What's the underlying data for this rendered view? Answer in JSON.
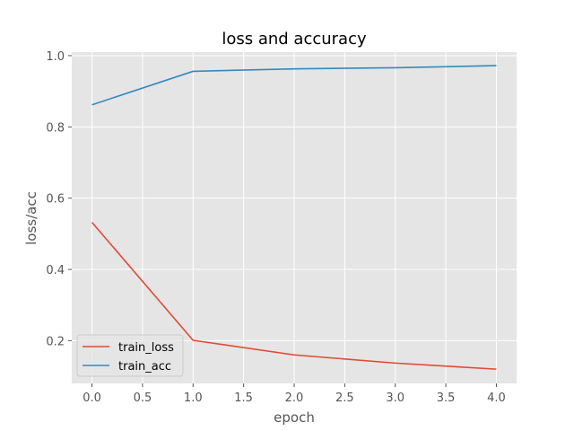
{
  "chart_data": {
    "type": "line",
    "title": "loss and accuracy",
    "xlabel": "epoch",
    "ylabel": "loss/acc",
    "x": [
      0,
      1,
      2,
      3,
      4
    ],
    "xlim": [
      -0.2,
      4.2
    ],
    "ylim": [
      0.08,
      1.01
    ],
    "xticks": [
      0.0,
      0.5,
      1.0,
      1.5,
      2.0,
      2.5,
      3.0,
      3.5,
      4.0
    ],
    "xtick_labels": [
      "0.0",
      "0.5",
      "1.0",
      "1.5",
      "2.0",
      "2.5",
      "3.0",
      "3.5",
      "4.0"
    ],
    "yticks": [
      0.2,
      0.4,
      0.6,
      0.8,
      1.0
    ],
    "ytick_labels": [
      "0.2",
      "0.4",
      "0.6",
      "0.8",
      "1.0"
    ],
    "grid": true,
    "legend_position": "lower-left",
    "series": [
      {
        "name": "train_loss",
        "color": "#e24a33",
        "values": [
          0.532,
          0.201,
          0.16,
          0.137,
          0.12
        ]
      },
      {
        "name": "train_acc",
        "color": "#348abd",
        "values": [
          0.862,
          0.956,
          0.963,
          0.966,
          0.972
        ]
      }
    ]
  }
}
